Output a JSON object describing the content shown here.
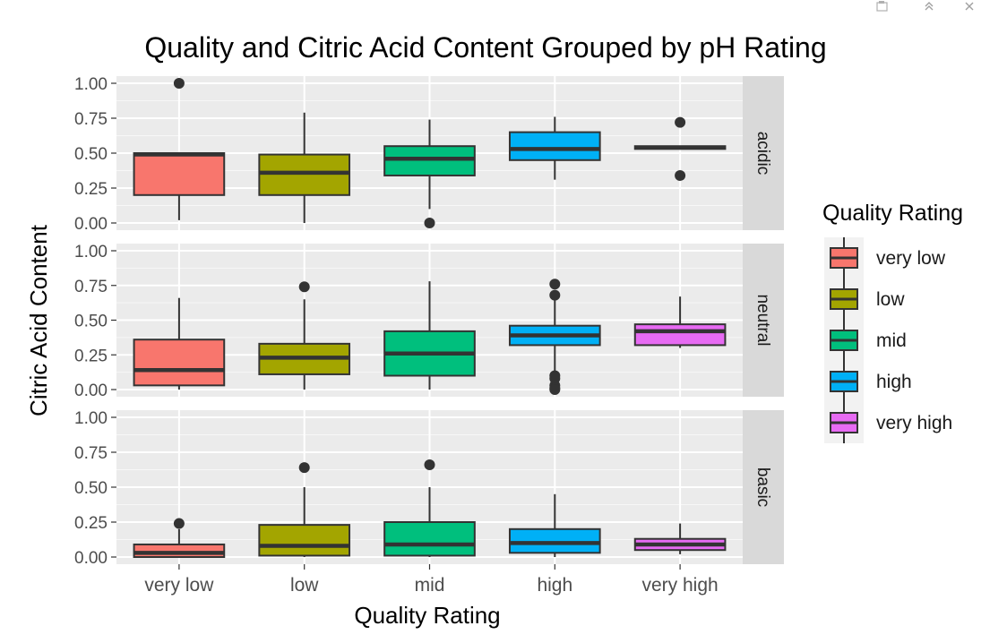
{
  "window": {
    "icons": [
      "open-in-window-icon",
      "collapse-icon",
      "close-icon"
    ]
  },
  "chart_data": {
    "type": "boxplot",
    "title": "Quality and Citric Acid Content Grouped by pH Rating",
    "xlabel": "Quality Rating",
    "ylabel": "Citric Acid Content",
    "categories": [
      "very low",
      "low",
      "mid",
      "high",
      "very high"
    ],
    "ylim": [
      0,
      1
    ],
    "yticks": [
      "0.00",
      "0.25",
      "0.50",
      "0.75",
      "1.00"
    ],
    "grid": true,
    "legend": {
      "title": "Quality Rating",
      "position": "right",
      "entries": [
        "very low",
        "low",
        "mid",
        "high",
        "very high"
      ]
    },
    "colors": {
      "very low": "#F8766D",
      "low": "#A3A500",
      "mid": "#00BF7D",
      "high": "#00B0F6",
      "very high": "#E76BF3",
      "panel_bg": "#EBEBEB",
      "strip_bg": "#D9D9D9",
      "box_line": "#333333"
    },
    "facets": [
      {
        "label": "acidic",
        "boxes": [
          {
            "category": "very low",
            "min": 0.02,
            "q1": 0.2,
            "median": 0.49,
            "q3": 0.5,
            "max": 0.5,
            "outliers": [
              1.0
            ]
          },
          {
            "category": "low",
            "min": 0.0,
            "q1": 0.2,
            "median": 0.36,
            "q3": 0.49,
            "max": 0.79,
            "outliers": []
          },
          {
            "category": "mid",
            "min": 0.1,
            "q1": 0.34,
            "median": 0.46,
            "q3": 0.55,
            "max": 0.74,
            "outliers": [
              0.0
            ]
          },
          {
            "category": "high",
            "min": 0.31,
            "q1": 0.45,
            "median": 0.53,
            "q3": 0.65,
            "max": 0.76,
            "outliers": []
          },
          {
            "category": "very high",
            "min": 0.53,
            "q1": 0.53,
            "median": 0.54,
            "q3": 0.55,
            "max": 0.55,
            "outliers": [
              0.72,
              0.34
            ]
          }
        ]
      },
      {
        "label": "neutral",
        "boxes": [
          {
            "category": "very low",
            "min": 0.0,
            "q1": 0.03,
            "median": 0.14,
            "q3": 0.36,
            "max": 0.66,
            "outliers": []
          },
          {
            "category": "low",
            "min": 0.0,
            "q1": 0.11,
            "median": 0.23,
            "q3": 0.33,
            "max": 0.65,
            "outliers": [
              0.74
            ]
          },
          {
            "category": "mid",
            "min": 0.0,
            "q1": 0.1,
            "median": 0.26,
            "q3": 0.42,
            "max": 0.78,
            "outliers": []
          },
          {
            "category": "high",
            "min": 0.12,
            "q1": 0.32,
            "median": 0.39,
            "q3": 0.46,
            "max": 0.66,
            "outliers": [
              0.76,
              0.68,
              0.1,
              0.08,
              0.03,
              0.01,
              0.0
            ]
          },
          {
            "category": "very high",
            "min": 0.3,
            "q1": 0.32,
            "median": 0.42,
            "q3": 0.47,
            "max": 0.67,
            "outliers": []
          }
        ]
      },
      {
        "label": "basic",
        "boxes": [
          {
            "category": "very low",
            "min": 0.0,
            "q1": 0.0,
            "median": 0.03,
            "q3": 0.09,
            "max": 0.2,
            "outliers": [
              0.24
            ]
          },
          {
            "category": "low",
            "min": 0.0,
            "q1": 0.01,
            "median": 0.08,
            "q3": 0.23,
            "max": 0.5,
            "outliers": [
              0.64
            ]
          },
          {
            "category": "mid",
            "min": 0.0,
            "q1": 0.01,
            "median": 0.09,
            "q3": 0.25,
            "max": 0.5,
            "outliers": [
              0.66
            ]
          },
          {
            "category": "high",
            "min": 0.0,
            "q1": 0.03,
            "median": 0.1,
            "q3": 0.2,
            "max": 0.45,
            "outliers": []
          },
          {
            "category": "very high",
            "min": 0.02,
            "q1": 0.05,
            "median": 0.09,
            "q3": 0.13,
            "max": 0.24,
            "outliers": []
          }
        ]
      }
    ]
  }
}
